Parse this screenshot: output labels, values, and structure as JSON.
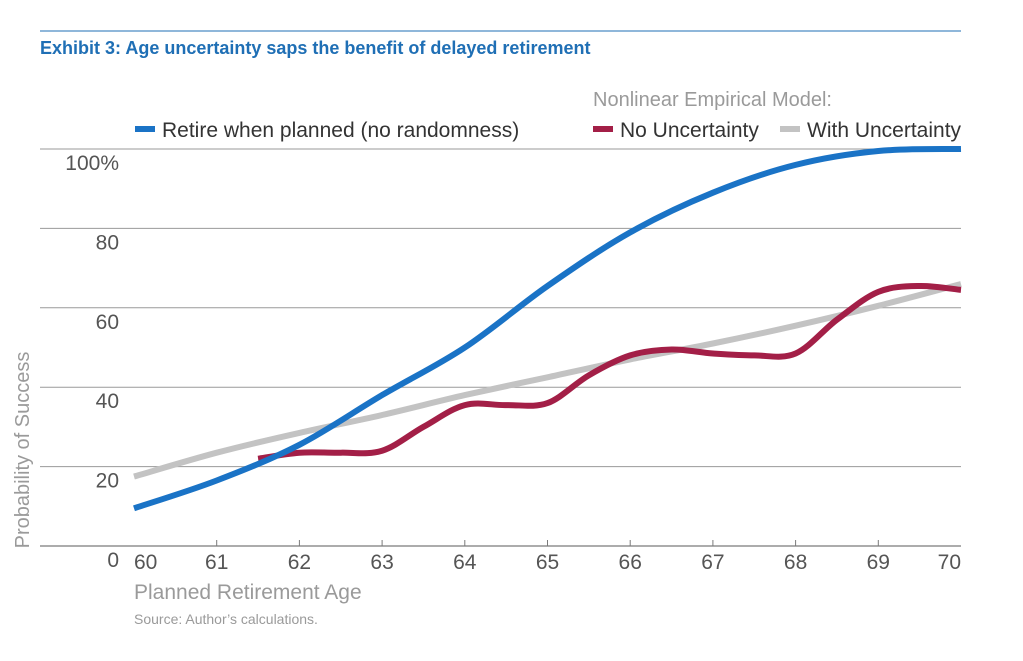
{
  "title": "Exhibit 3: Age uncertainty saps the benefit of delayed retirement",
  "legend": {
    "group_label": "Nonlinear Empirical Model:"
  },
  "source": "Source: Author’s calculations.",
  "colors": {
    "title": "#1f6fb5",
    "top_rule": "#1f6fb5",
    "gridline": "#9a9a9a",
    "axis": "#7a7a7a"
  },
  "chart_data": {
    "type": "line",
    "xlabel": "Planned Retirement Age",
    "ylabel": "Probability of Success",
    "xlim": [
      60,
      70
    ],
    "ylim": [
      0,
      100
    ],
    "xticks": [
      60,
      61,
      62,
      63,
      64,
      65,
      66,
      67,
      68,
      69,
      70
    ],
    "yticks": [
      0,
      20,
      40,
      60,
      80,
      100
    ],
    "ytick_labels": [
      "0",
      "20",
      "40",
      "60",
      "80",
      "100%"
    ],
    "grid": true,
    "legend_position": "top",
    "series": [
      {
        "name": "Retire when planned (no randomness)",
        "color": "#1a73c6",
        "x": [
          60,
          61,
          62,
          63,
          64,
          65,
          66,
          67,
          68,
          69,
          70
        ],
        "y": [
          9.5,
          16.5,
          25.5,
          38,
          50,
          65.5,
          79,
          89,
          96,
          99.5,
          100
        ]
      },
      {
        "name": "No Uncertainty",
        "color": "#a31f47",
        "x": [
          61.5,
          62,
          62.5,
          63,
          63.5,
          64,
          64.5,
          65,
          65.5,
          66,
          66.5,
          67,
          67.5,
          68,
          68.5,
          69,
          69.5,
          70
        ],
        "y": [
          22,
          23.5,
          23.5,
          24,
          30,
          35.5,
          35.5,
          36,
          43,
          48,
          49.5,
          48.5,
          48,
          48.5,
          57,
          64,
          65.5,
          64.5
        ]
      },
      {
        "name": "With Uncertainty",
        "color": "#c3c3c3",
        "x": [
          60,
          61,
          62,
          63,
          64,
          65,
          66,
          67,
          68,
          69,
          70
        ],
        "y": [
          17.5,
          23.5,
          28.5,
          33,
          38,
          42.5,
          47,
          51,
          55.5,
          60.5,
          66
        ]
      }
    ]
  }
}
